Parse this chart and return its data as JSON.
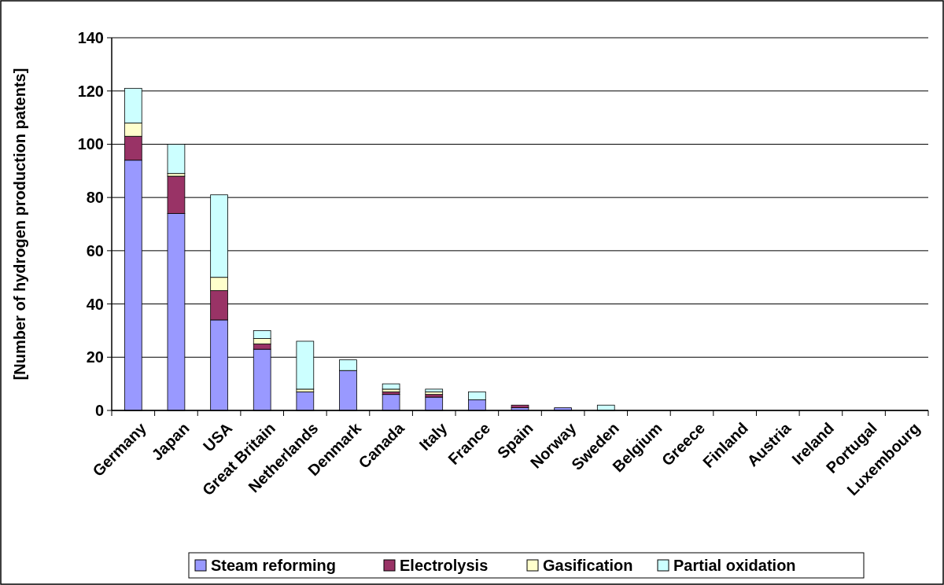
{
  "chart_data": {
    "type": "bar",
    "stacked": true,
    "ylabel": "[Number of hydrogen production patents]",
    "categories": [
      "Germany",
      "Japan",
      "USA",
      "Great Britain",
      "Netherlands",
      "Denmark",
      "Canada",
      "Italy",
      "France",
      "Spain",
      "Norway",
      "Sweden",
      "Belgium",
      "Greece",
      "Finland",
      "Austria",
      "Ireland",
      "Portugal",
      "Luxembourg"
    ],
    "series": [
      {
        "name": "Steam reforming",
        "color": "#9999ff",
        "values": [
          94,
          74,
          34,
          23,
          7,
          15,
          6,
          5,
          4,
          1,
          1,
          0,
          0,
          0,
          0,
          0,
          0,
          0,
          0
        ]
      },
      {
        "name": "Electrolysis",
        "color": "#993366",
        "values": [
          9,
          14,
          11,
          2,
          0,
          0,
          1,
          1,
          0,
          1,
          0,
          0,
          0,
          0,
          0,
          0,
          0,
          0,
          0
        ]
      },
      {
        "name": "Gasification",
        "color": "#ffffcc",
        "values": [
          5,
          1,
          5,
          2,
          1,
          0,
          1,
          1,
          0,
          0,
          0,
          0,
          0,
          0,
          0,
          0,
          0,
          0,
          0
        ]
      },
      {
        "name": "Partial oxidation",
        "color": "#ccffff",
        "values": [
          13,
          11,
          31,
          3,
          18,
          4,
          2,
          1,
          3,
          0,
          0,
          2,
          0,
          0,
          0,
          0,
          0,
          0,
          0
        ]
      }
    ],
    "ylim": [
      0,
      140
    ],
    "yticks": [
      0,
      20,
      40,
      60,
      80,
      100,
      120,
      140
    ],
    "grid": "y",
    "legend": "bottom"
  }
}
